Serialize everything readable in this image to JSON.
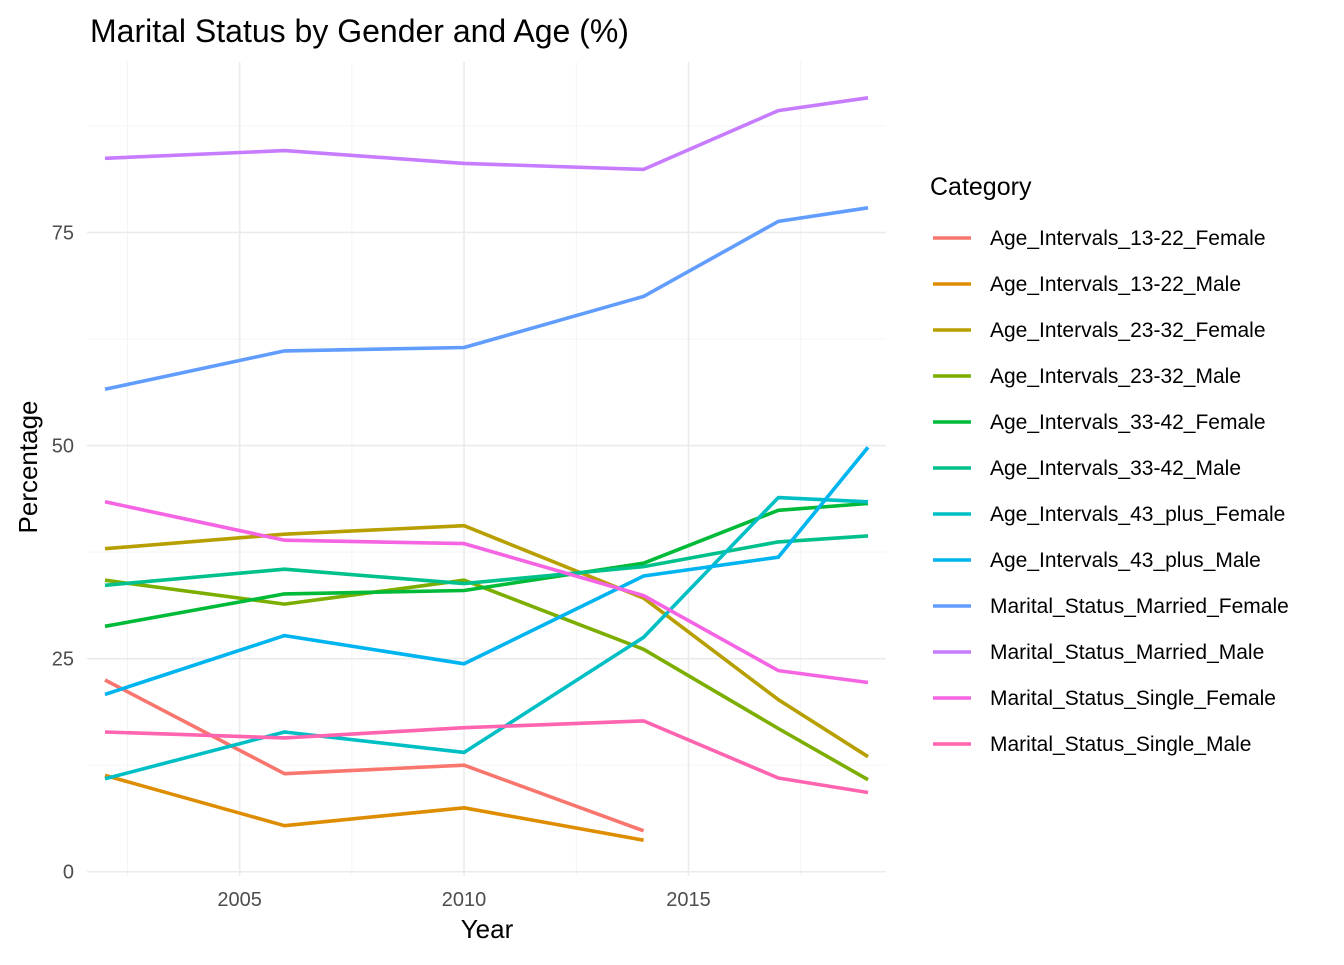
{
  "chart_data": {
    "type": "line",
    "title": "Marital Status by Gender and Age (%)",
    "xlabel": "Year",
    "ylabel": "Percentage",
    "xlim": [
      2001.6,
      2019.4
    ],
    "ylim": [
      -0.5,
      95
    ],
    "x_ticks": [
      2005,
      2010,
      2015
    ],
    "x_minor_ticks": [
      2002.5,
      2007.5,
      2012.5,
      2017.5
    ],
    "y_ticks": [
      0,
      25,
      50,
      75
    ],
    "y_minor_ticks": [
      12.5,
      37.5,
      62.5,
      87.5
    ],
    "grid": true,
    "legend": {
      "title": "Category",
      "placement": "right"
    },
    "series": [
      {
        "name": "Age_Intervals_13-22_Female",
        "color": "#F8766D",
        "points": [
          [
            2002,
            22.5
          ],
          [
            2006,
            11.5
          ],
          [
            2010,
            12.5
          ],
          [
            2014,
            4.8
          ]
        ]
      },
      {
        "name": "Age_Intervals_13-22_Male",
        "color": "#DE8C00",
        "points": [
          [
            2002,
            11.3
          ],
          [
            2006,
            5.4
          ],
          [
            2010,
            7.5
          ],
          [
            2014,
            3.7
          ]
        ]
      },
      {
        "name": "Age_Intervals_23-32_Female",
        "color": "#B79F00",
        "points": [
          [
            2002,
            37.9
          ],
          [
            2006,
            39.6
          ],
          [
            2010,
            40.6
          ],
          [
            2014,
            32.1
          ],
          [
            2017,
            20.2
          ],
          [
            2019,
            13.5
          ]
        ]
      },
      {
        "name": "Age_Intervals_23-32_Male",
        "color": "#7CAE00",
        "points": [
          [
            2002,
            34.2
          ],
          [
            2006,
            31.4
          ],
          [
            2010,
            34.2
          ],
          [
            2014,
            26.1
          ],
          [
            2017,
            16.8
          ],
          [
            2019,
            10.8
          ]
        ]
      },
      {
        "name": "Age_Intervals_33-42_Female",
        "color": "#00BA38",
        "points": [
          [
            2002,
            28.8
          ],
          [
            2006,
            32.6
          ],
          [
            2010,
            33.0
          ],
          [
            2014,
            36.2
          ],
          [
            2017,
            42.4
          ],
          [
            2019,
            43.2
          ]
        ]
      },
      {
        "name": "Age_Intervals_33-42_Male",
        "color": "#00C08B",
        "points": [
          [
            2002,
            33.6
          ],
          [
            2006,
            35.5
          ],
          [
            2010,
            33.8
          ],
          [
            2014,
            35.8
          ],
          [
            2017,
            38.7
          ],
          [
            2019,
            39.4
          ]
        ]
      },
      {
        "name": "Age_Intervals_43_plus_Female",
        "color": "#00BFC4",
        "points": [
          [
            2002,
            10.9
          ],
          [
            2006,
            16.4
          ],
          [
            2010,
            14.0
          ],
          [
            2014,
            27.5
          ],
          [
            2017,
            43.9
          ],
          [
            2019,
            43.4
          ]
        ]
      },
      {
        "name": "Age_Intervals_43_plus_Male",
        "color": "#00B4F0",
        "points": [
          [
            2002,
            20.8
          ],
          [
            2006,
            27.7
          ],
          [
            2010,
            24.4
          ],
          [
            2014,
            34.7
          ],
          [
            2017,
            36.9
          ],
          [
            2019,
            49.8
          ]
        ]
      },
      {
        "name": "Marital_Status_Married_Female",
        "color": "#619CFF",
        "points": [
          [
            2002,
            56.6
          ],
          [
            2006,
            61.1
          ],
          [
            2010,
            61.5
          ],
          [
            2014,
            67.5
          ],
          [
            2017,
            76.3
          ],
          [
            2019,
            77.9
          ]
        ]
      },
      {
        "name": "Marital_Status_Married_Male",
        "color": "#C77CFF",
        "points": [
          [
            2002,
            83.7
          ],
          [
            2006,
            84.6
          ],
          [
            2010,
            83.1
          ],
          [
            2014,
            82.4
          ],
          [
            2017,
            89.3
          ],
          [
            2019,
            90.8
          ]
        ]
      },
      {
        "name": "Marital_Status_Single_Female",
        "color": "#F564E3",
        "points": [
          [
            2002,
            43.4
          ],
          [
            2006,
            38.9
          ],
          [
            2010,
            38.5
          ],
          [
            2014,
            32.4
          ],
          [
            2017,
            23.6
          ],
          [
            2019,
            22.2
          ]
        ]
      },
      {
        "name": "Marital_Status_Single_Male",
        "color": "#FF64B0",
        "points": [
          [
            2002,
            16.4
          ],
          [
            2006,
            15.7
          ],
          [
            2010,
            16.9
          ],
          [
            2014,
            17.7
          ],
          [
            2017,
            11.0
          ],
          [
            2019,
            9.3
          ]
        ]
      }
    ]
  }
}
